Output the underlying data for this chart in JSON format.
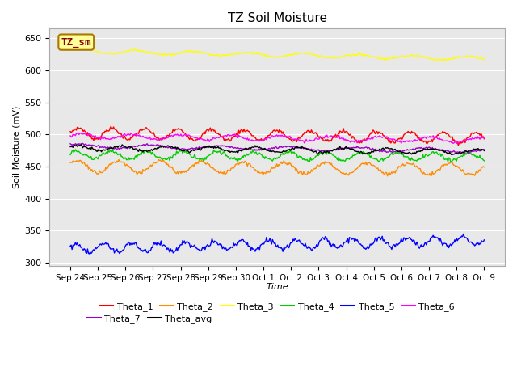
{
  "title": "TZ Soil Moisture",
  "xlabel": "Time",
  "ylabel": "Soil Moisture (mV)",
  "ylim": [
    295,
    665
  ],
  "yticks": [
    300,
    350,
    400,
    450,
    500,
    550,
    600,
    650
  ],
  "x_labels": [
    "Sep 24",
    "Sep 25",
    "Sep 26",
    "Sep 27",
    "Sep 28",
    "Sep 29",
    "Sep 30",
    "Oct 1",
    "Oct 2",
    "Oct 3",
    "Oct 4",
    "Oct 5",
    "Oct 6",
    "Oct 7",
    "Oct 8",
    "Oct 9"
  ],
  "n_points": 480,
  "days": 15,
  "series": {
    "Theta_1": {
      "color": "#ff0000",
      "base": 502,
      "amplitude": 8,
      "period": 1.2,
      "trend": -0.5,
      "noise": 1.5,
      "phase": 0.0
    },
    "Theta_2": {
      "color": "#ff8c00",
      "base": 450,
      "amplitude": 9,
      "period": 1.5,
      "trend": -0.3,
      "noise": 1.5,
      "phase": 0.5
    },
    "Theta_3": {
      "color": "#ffff00",
      "base": 630,
      "amplitude": 3,
      "period": 2.0,
      "trend": -0.8,
      "noise": 0.8,
      "phase": 0.2
    },
    "Theta_4": {
      "color": "#00cc00",
      "base": 468,
      "amplitude": 6,
      "period": 1.3,
      "trend": -0.2,
      "noise": 1.5,
      "phase": 0.8
    },
    "Theta_5": {
      "color": "#0000ff",
      "base": 322,
      "amplitude": 7,
      "period": 1.0,
      "trend": 0.8,
      "noise": 2.0,
      "phase": 0.3
    },
    "Theta_6": {
      "color": "#ff00ff",
      "base": 497,
      "amplitude": 4,
      "period": 1.8,
      "trend": -0.4,
      "noise": 1.0,
      "phase": 0.1
    },
    "Theta_7": {
      "color": "#9900cc",
      "base": 482,
      "amplitude": 3,
      "period": 2.5,
      "trend": -0.5,
      "noise": 0.8,
      "phase": 0.6
    },
    "Theta_avg": {
      "color": "#000000",
      "base": 479,
      "amplitude": 4,
      "period": 1.6,
      "trend": -0.4,
      "noise": 1.0,
      "phase": 0.4
    }
  },
  "legend_order": [
    "Theta_1",
    "Theta_2",
    "Theta_3",
    "Theta_4",
    "Theta_5",
    "Theta_6",
    "Theta_7",
    "Theta_avg"
  ],
  "annotation_text": "TZ_sm",
  "annotation_bg": "#ffff99",
  "annotation_border": "#aa7700",
  "annotation_text_color": "#880000",
  "background_color": "#e8e8e8"
}
